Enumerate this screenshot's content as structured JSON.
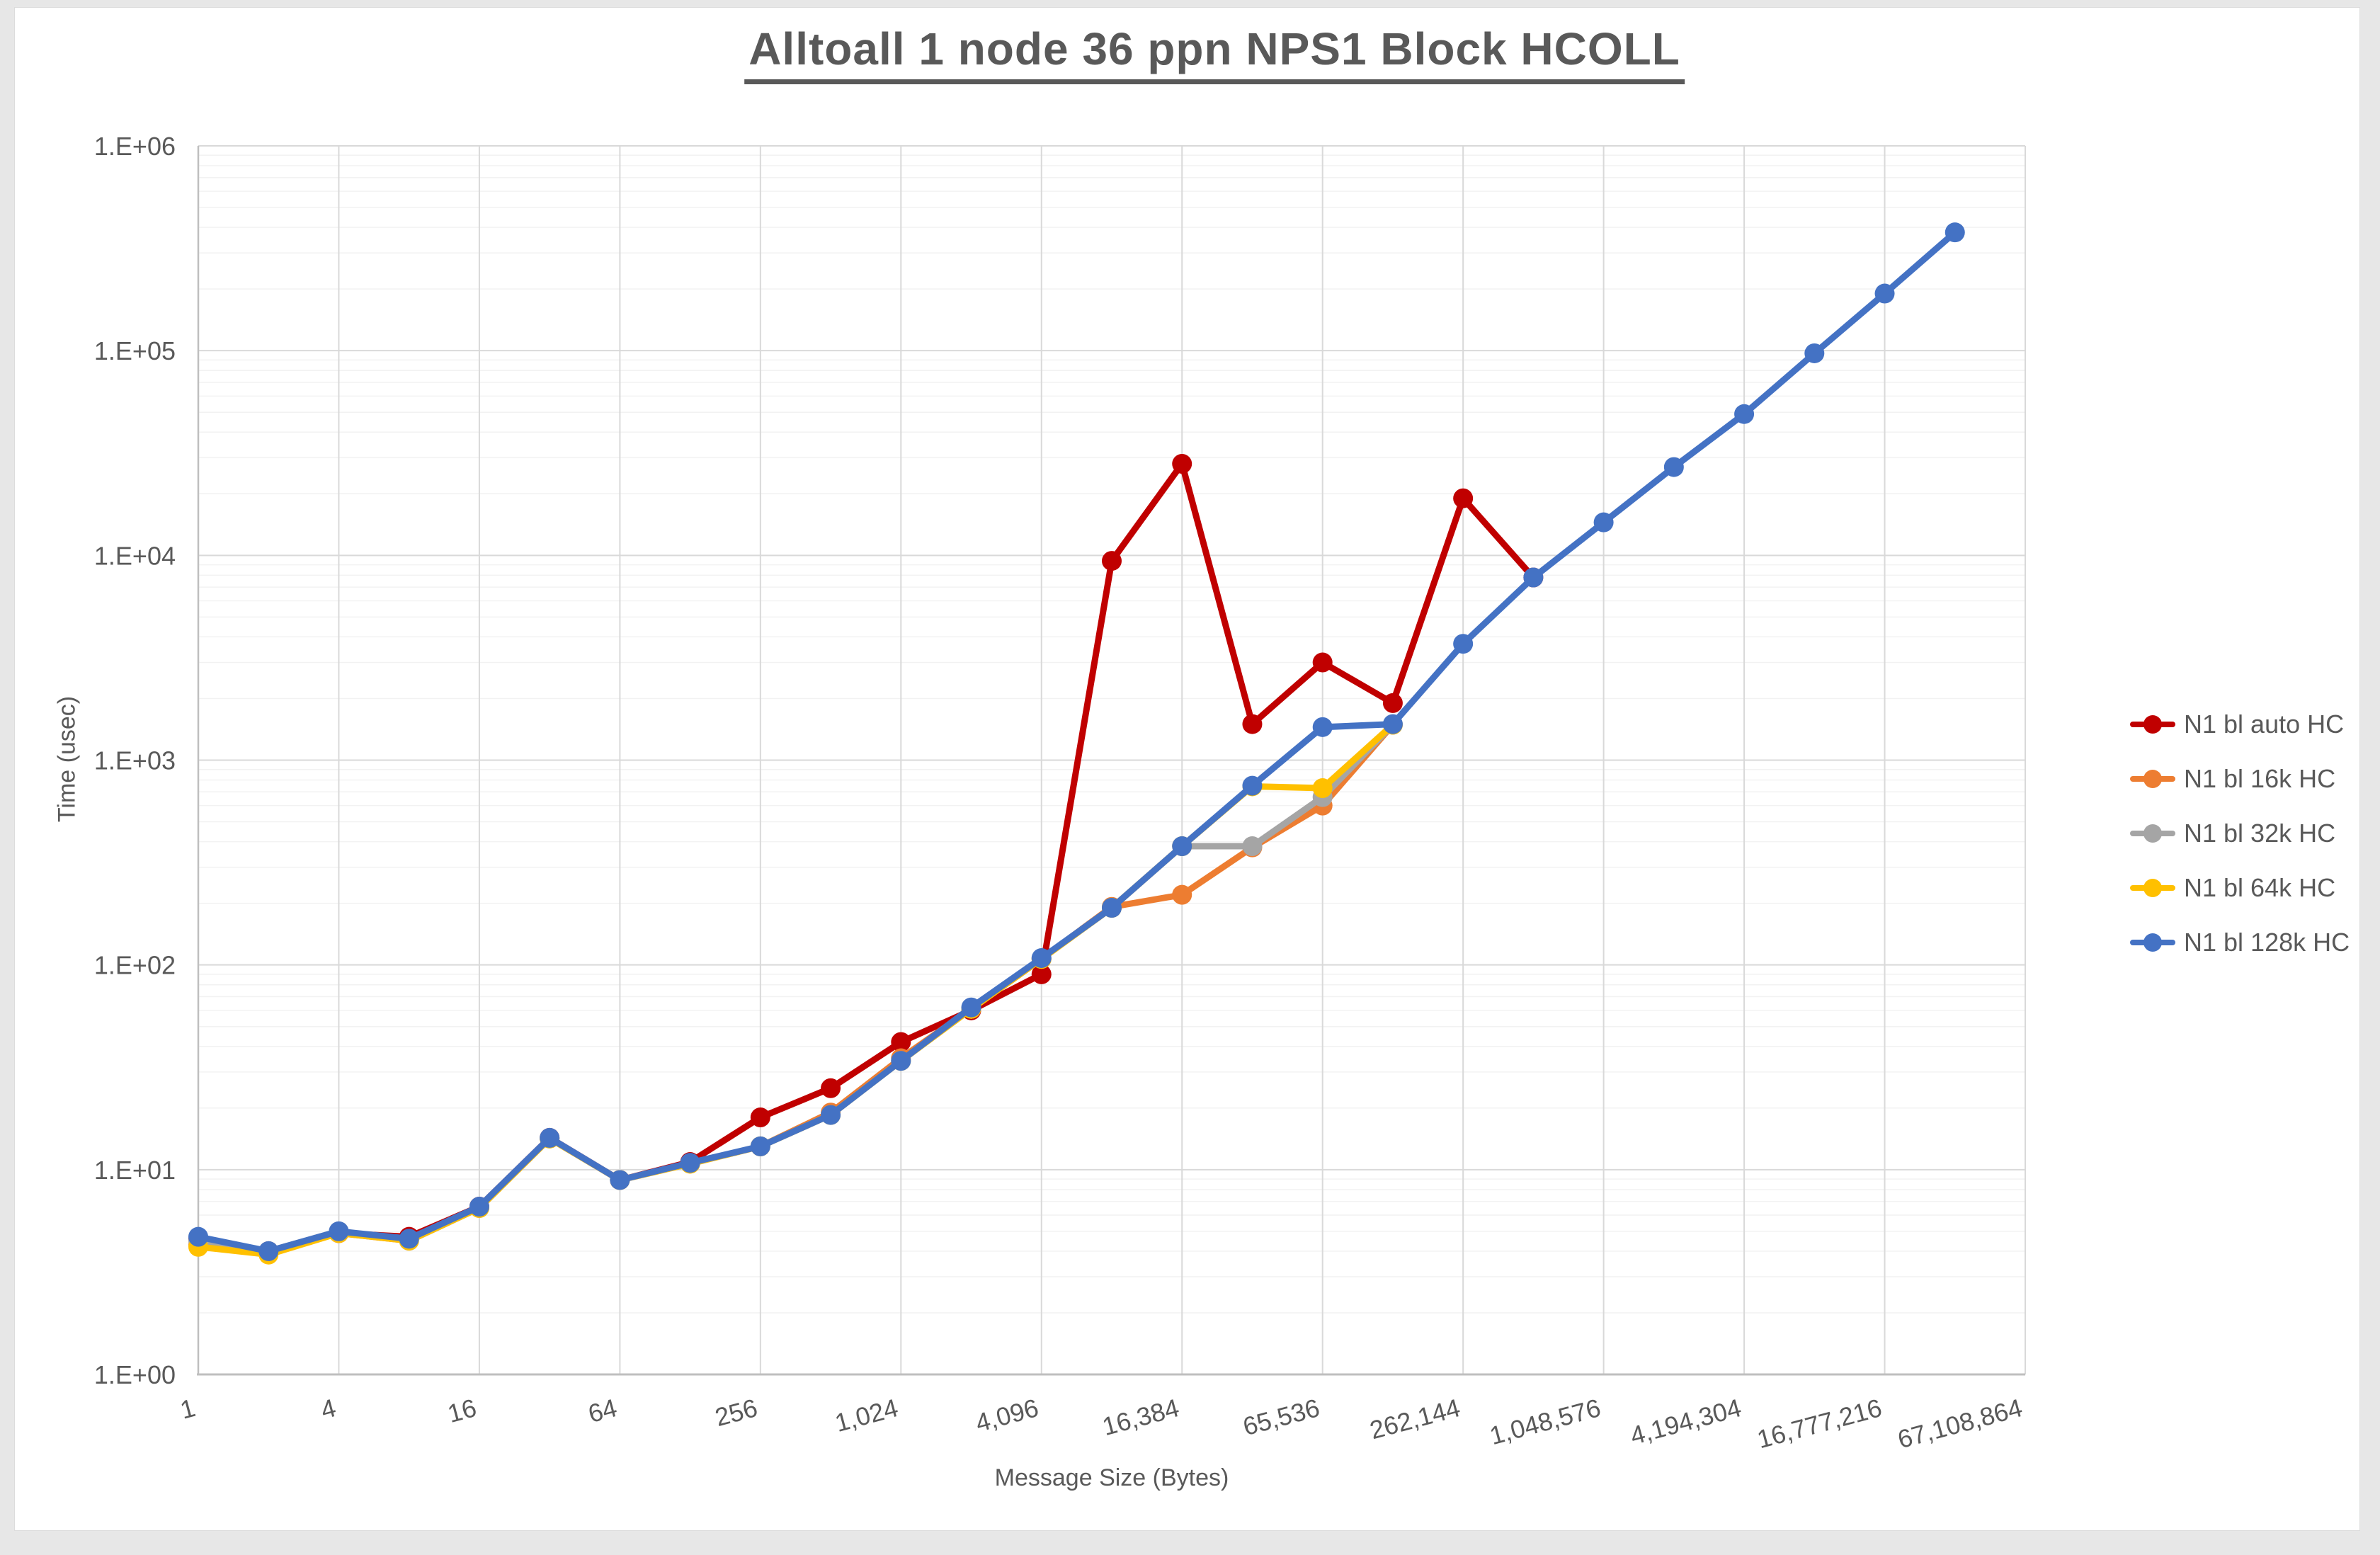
{
  "window": {
    "page_background": "#e7e7e7",
    "chart_background": "#ffffff"
  },
  "header": {
    "title": "Alltoall 1 node 36 ppn NPS1 Block HCOLL",
    "title_color": "#595959"
  },
  "axes": {
    "x_title": "Message Size (Bytes)",
    "y_title": "Time (usec)",
    "text_color": "#595959",
    "x_tick_labels": [
      "1",
      "4",
      "16",
      "64",
      "256",
      "1,024",
      "4,096",
      "16,384",
      "65,536",
      "262,144",
      "1,048,576",
      "4,194,304",
      "16,777,216",
      "67,108,864"
    ],
    "y_tick_labels": [
      "1.E+00",
      "1.E+01",
      "1.E+02",
      "1.E+03",
      "1.E+04",
      "1.E+05",
      "1.E+06"
    ]
  },
  "chart_data": {
    "type": "line",
    "title": "Alltoall 1 node 36 ppn NPS1 Block HCOLL",
    "xlabel": "Message Size (Bytes)",
    "ylabel": "Time (usec)",
    "x_scale": "log2",
    "y_scale": "log10",
    "xlim": [
      1,
      67108864
    ],
    "ylim": [
      1,
      1000000
    ],
    "grid": "vertical major every 4x; horizontal log major + minor",
    "legend_position": "right-middle",
    "marker": "circle",
    "x": [
      1,
      2,
      4,
      8,
      16,
      32,
      64,
      128,
      256,
      512,
      1024,
      2048,
      4096,
      8192,
      16384,
      32768,
      65536,
      131072,
      262144,
      524288,
      1048576,
      2097152,
      4194304,
      8388608,
      16777216,
      33554432
    ],
    "series": [
      {
        "name": "N1 bl auto HC",
        "color": "#C00000",
        "values": [
          4.6,
          4.0,
          4.9,
          4.7,
          6.6,
          14.3,
          8.9,
          10.9,
          18,
          25,
          42,
          60,
          90,
          9400,
          28000,
          1500,
          3000,
          1900,
          19000,
          7800
        ]
      },
      {
        "name": "N1 bl 16k HC",
        "color": "#ED7D31",
        "values": [
          4.3,
          3.9,
          4.9,
          4.5,
          6.5,
          14.2,
          8.9,
          10.7,
          13,
          19,
          35,
          61,
          107,
          192,
          220,
          375,
          600,
          1490
        ]
      },
      {
        "name": "N1 bl 32k HC",
        "color": "#A5A5A5",
        "values": [
          4.5,
          4.0,
          5.0,
          4.5,
          6.5,
          14.2,
          8.9,
          10.7,
          13,
          18.5,
          34,
          61,
          107,
          190,
          380,
          380,
          660,
          1490
        ]
      },
      {
        "name": "N1 bl 64k HC",
        "color": "#FFC000",
        "values": [
          4.2,
          3.85,
          4.9,
          4.5,
          6.5,
          14.2,
          8.9,
          10.7,
          13,
          18.5,
          34,
          61,
          107,
          190,
          380,
          745,
          730,
          1490
        ]
      },
      {
        "name": "N1 bl 128k HC",
        "color": "#4472C4",
        "values": [
          4.7,
          4.0,
          5.0,
          4.6,
          6.6,
          14.3,
          8.9,
          10.8,
          13,
          18.5,
          34,
          62,
          108,
          190,
          380,
          750,
          1450,
          1500,
          3700,
          7800,
          14500,
          27000,
          49000,
          97000,
          190000,
          378000
        ]
      }
    ]
  },
  "style": {
    "major_grid_color": "#d9d9d9",
    "minor_grid_color": "#f2f2f2",
    "axis_line_color": "#bfbfbf",
    "series_stroke_width": 9,
    "marker_radius": 14
  }
}
